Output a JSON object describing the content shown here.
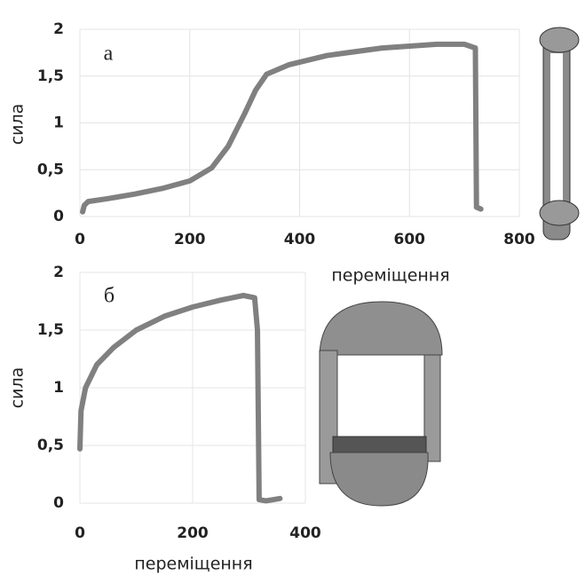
{
  "chart_data": [
    {
      "type": "line",
      "annotation": "а",
      "x_label": "переміщення",
      "y_label": "сила",
      "xlim": [
        0,
        800
      ],
      "xticks": [
        0,
        200,
        400,
        600,
        800
      ],
      "ylim": [
        0,
        2
      ],
      "yticks": [
        0,
        {
          "value": 0.5,
          "label": "0,5"
        },
        1,
        {
          "value": 1.5,
          "label": "1,5"
        },
        2
      ],
      "grid": true,
      "series": [
        {
          "color": "#808080",
          "x": [
            5,
            8,
            15,
            50,
            100,
            150,
            200,
            240,
            270,
            300,
            320,
            340,
            380,
            450,
            550,
            650,
            700,
            720,
            722,
            730
          ],
          "values": [
            0.05,
            0.12,
            0.16,
            0.19,
            0.24,
            0.3,
            0.38,
            0.52,
            0.75,
            1.1,
            1.35,
            1.52,
            1.62,
            1.72,
            1.8,
            1.84,
            1.84,
            1.8,
            0.1,
            0.08
          ]
        }
      ]
    },
    {
      "type": "line",
      "annotation": "б",
      "x_label": "переміщення",
      "y_label": "сила",
      "xlim": [
        0,
        400
      ],
      "xticks": [
        0,
        200,
        400
      ],
      "ylim": [
        0,
        2
      ],
      "yticks": [
        0,
        {
          "value": 0.5,
          "label": "0,5"
        },
        1,
        {
          "value": 1.5,
          "label": "1,5"
        },
        2
      ],
      "grid": true,
      "series": [
        {
          "color": "#808080",
          "x": [
            0,
            2,
            10,
            30,
            60,
            100,
            150,
            200,
            250,
            290,
            310,
            315,
            318,
            330,
            355
          ],
          "values": [
            0.47,
            0.8,
            1.0,
            1.2,
            1.35,
            1.5,
            1.62,
            1.7,
            1.76,
            1.8,
            1.78,
            1.5,
            0.03,
            0.02,
            0.04
          ]
        }
      ]
    }
  ]
}
